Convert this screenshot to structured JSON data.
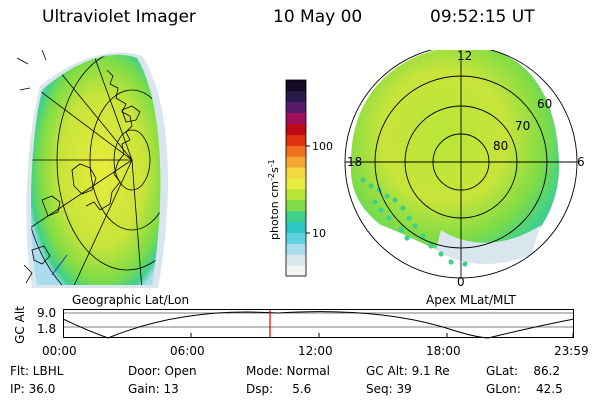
{
  "header": {
    "title": "Ultraviolet Imager",
    "date": "10 May 00",
    "time": "09:52:15 UT"
  },
  "colorbar": {
    "unit_label": "photon cm",
    "unit_exp1": "-2",
    "unit_s": "s",
    "unit_exp2": "-1",
    "tick_100": "100",
    "tick_10": "10",
    "colors": [
      "#f4f4f4",
      "#d9e6ee",
      "#a8dcec",
      "#5fd0e0",
      "#2ec8c4",
      "#3fd08c",
      "#7fdc46",
      "#b8e638",
      "#e8ec3c",
      "#f4d83c",
      "#f4a832",
      "#f07020",
      "#e03010",
      "#c00818",
      "#a0105a",
      "#5a1a6a",
      "#2a1a4a",
      "#140c24"
    ]
  },
  "right_map": {
    "grid_labels": {
      "top": "12",
      "bottom": "0",
      "left": "18",
      "right": "6",
      "lat60": "60",
      "lat70": "70",
      "lat80": "80"
    },
    "dot_color": "#3fd08c"
  },
  "panel_labels": {
    "left": "Geographic Lat/Lon",
    "right": "Apex MLat/MLT"
  },
  "alt_plot": {
    "ylabel": "GC Alt",
    "y_top": "9.0",
    "y_bottom": "1.8",
    "x_ticks": [
      "00:00",
      "06:00",
      "12:00",
      "18:00",
      "23:59"
    ],
    "marker_color": "#e00000"
  },
  "status": {
    "flt": "Flt: LBHL",
    "ip": "IP: 36.0",
    "door": "Door: Open",
    "gain": "Gain: 13",
    "mode": "Mode: Normal",
    "dsp": "Dsp:     5.6",
    "gcalt": "GC Alt: 9.1 Re",
    "seq": "Seq: 39",
    "glat": "GLat:    86.2",
    "glon": "GLon:    42.5"
  }
}
